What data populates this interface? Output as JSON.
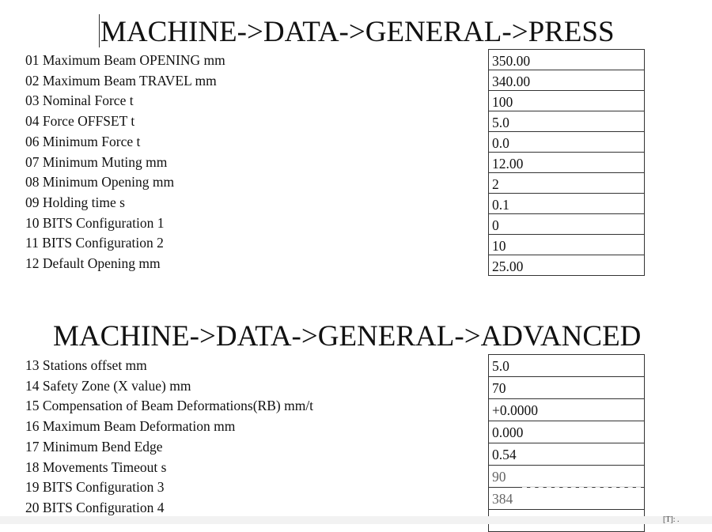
{
  "sections": [
    {
      "title": "MACHINE->DATA->GENERAL->PRESS",
      "labels": [
        "01 Maximum Beam OPENING mm",
        "02 Maximum Beam TRAVEL mm",
        "03 Nominal Force t",
        "04 Force OFFSET t",
        "06 Minimum Force t",
        "07 Minimum  Muting mm",
        "08 Minimum Opening mm",
        "09 Holding time s",
        "10 BITS Configuration 1",
        "11 BITS Configuration 2",
        "12 Default Opening mm"
      ],
      "values": [
        "350.00",
        "340.00",
        "100",
        "5.0",
        "0.0",
        "12.00",
        "2",
        "0.1",
        "0",
        "10",
        "25.00"
      ]
    },
    {
      "title": "MACHINE->DATA->GENERAL->ADVANCED",
      "labels": [
        "13 Stations offset mm",
        "14 Safety Zone (X value) mm",
        "15 Compensation of Beam Deformations(RB) mm/t",
        "16 Maximum Beam Deformation mm",
        "17 Minimum Bend Edge",
        "18 Movements Timeout s",
        "19 BITS Configuration 3",
        "20 BITS Configuration 4"
      ],
      "values": [
        "5.0",
        "70",
        "+0.0000",
        "0.000",
        "0.54",
        "90",
        "384",
        ""
      ]
    }
  ],
  "footer": {
    "corner_text": "[T]: ."
  }
}
